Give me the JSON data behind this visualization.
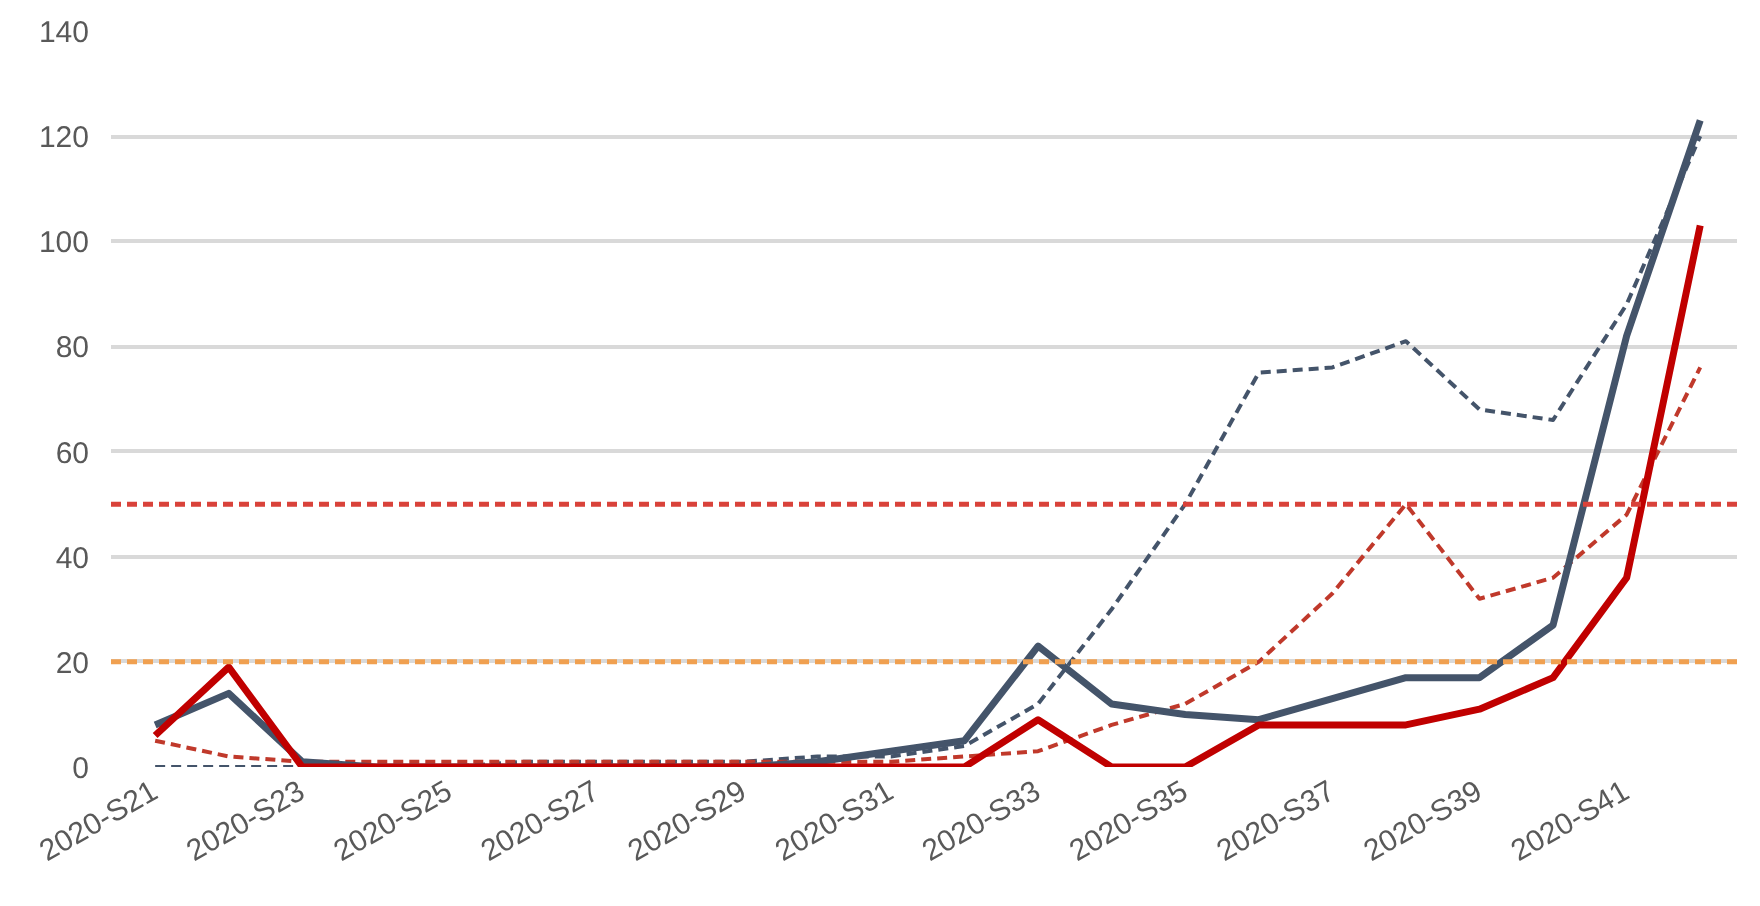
{
  "chart_data": {
    "type": "line",
    "categories": [
      "2020-S21",
      null,
      "2020-S23",
      null,
      "2020-S25",
      null,
      "2020-S27",
      null,
      "2020-S29",
      null,
      "2020-S31",
      null,
      "2020-S33",
      null,
      "2020-S35",
      null,
      "2020-S37",
      null,
      "2020-S39",
      null,
      "2020-S41",
      null
    ],
    "series": [
      {
        "color": "#44546a",
        "line_style": "dashed",
        "values": [
          0,
          0,
          0,
          0,
          0,
          1,
          1,
          1,
          1,
          2,
          2,
          4,
          12,
          30,
          50,
          75,
          76,
          81,
          68,
          66,
          88,
          120
        ]
      },
      {
        "color": "#c0392b",
        "line_style": "dashed",
        "values": [
          5,
          2,
          1,
          1,
          1,
          1,
          1,
          1,
          1,
          1,
          1,
          2,
          3,
          8,
          12,
          20,
          33,
          50,
          32,
          36,
          48,
          76
        ]
      },
      {
        "color": "#44546a",
        "line_style": "solid",
        "values": [
          8,
          14,
          1,
          0,
          0,
          0,
          0,
          0,
          0,
          1,
          3,
          5,
          23,
          12,
          10,
          9,
          13,
          17,
          17,
          27,
          82,
          123
        ]
      },
      {
        "color": "#c00000",
        "line_style": "solid",
        "values": [
          6,
          19,
          0,
          0,
          0,
          0,
          0,
          0,
          0,
          0,
          0,
          0,
          9,
          0,
          0,
          8,
          8,
          8,
          11,
          17,
          36,
          103
        ]
      }
    ],
    "ylim": [
      0,
      140
    ],
    "yticks": [
      0,
      20,
      40,
      60,
      80,
      100,
      120,
      140
    ],
    "grid": "y",
    "ref_lines": [
      {
        "axis": "y",
        "value": 50,
        "color": "#d9423a",
        "line_style": "dashed"
      },
      {
        "axis": "y",
        "value": 20,
        "color": "#f0a050",
        "line_style": "dashed"
      }
    ]
  }
}
